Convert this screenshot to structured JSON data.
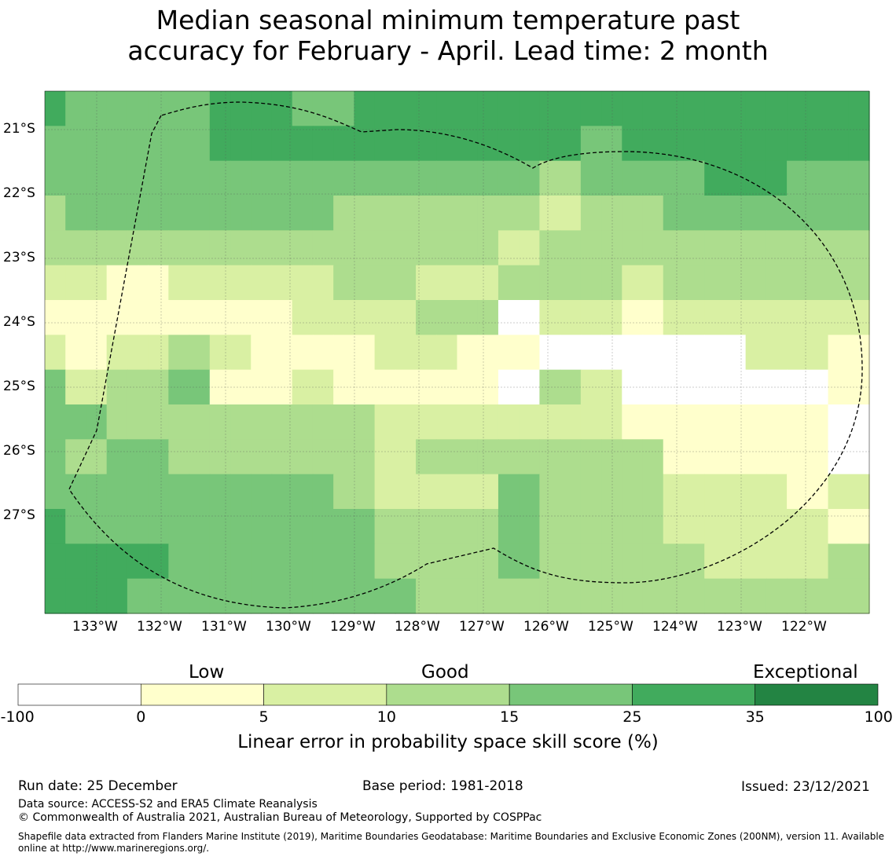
{
  "title": {
    "line1": "Median seasonal minimum temperature past",
    "line2": "accuracy for February - April. Lead time: 2 month"
  },
  "map": {
    "lat_labels": [
      "21°S",
      "22°S",
      "23°S",
      "24°S",
      "25°S",
      "26°S",
      "27°S"
    ],
    "lon_labels": [
      "133°W",
      "132°W",
      "131°W",
      "130°W",
      "129°W",
      "128°W",
      "127°W",
      "126°W",
      "125°W",
      "124°W",
      "123°W",
      "122°W"
    ],
    "grid_rows_lat_ranges": "20.5S to 28.5S",
    "class_colors": [
      "#ffffff",
      "#ffffcc",
      "#d9f0a3",
      "#addd8e",
      "#78c679",
      "#41ab5d",
      "#238443"
    ],
    "cells": [
      [
        5,
        4,
        4,
        4,
        4,
        4,
        4,
        4,
        5,
        5,
        5,
        5,
        4,
        4,
        4,
        5,
        5,
        5,
        5,
        5,
        5,
        5,
        5,
        5,
        5,
        5,
        5,
        5,
        5,
        5,
        5,
        5,
        5,
        5,
        5,
        5,
        5,
        5,
        5,
        5
      ],
      [
        4,
        4,
        4,
        4,
        4,
        4,
        4,
        4,
        5,
        5,
        5,
        5,
        5,
        5,
        5,
        5,
        5,
        5,
        5,
        5,
        5,
        5,
        5,
        5,
        5,
        5,
        4,
        4,
        5,
        5,
        5,
        5,
        5,
        5,
        5,
        5,
        5,
        5,
        5,
        5
      ],
      [
        4,
        4,
        4,
        4,
        4,
        4,
        4,
        4,
        4,
        4,
        4,
        4,
        4,
        4,
        4,
        4,
        4,
        4,
        4,
        4,
        4,
        4,
        4,
        4,
        3,
        3,
        4,
        4,
        4,
        4,
        4,
        4,
        5,
        5,
        5,
        5,
        4,
        4,
        4,
        4
      ],
      [
        3,
        4,
        4,
        4,
        4,
        4,
        4,
        4,
        4,
        4,
        4,
        4,
        4,
        4,
        3,
        3,
        3,
        3,
        3,
        3,
        3,
        3,
        3,
        3,
        2,
        2,
        3,
        3,
        3,
        3,
        4,
        4,
        4,
        4,
        4,
        4,
        4,
        4,
        4,
        4
      ],
      [
        3,
        3,
        3,
        3,
        3,
        3,
        3,
        3,
        3,
        3,
        3,
        3,
        3,
        3,
        3,
        3,
        3,
        3,
        3,
        3,
        3,
        3,
        2,
        2,
        3,
        3,
        3,
        3,
        3,
        3,
        3,
        3,
        3,
        3,
        3,
        3,
        3,
        3,
        3,
        3
      ],
      [
        2,
        2,
        2,
        1,
        1,
        1,
        2,
        2,
        2,
        2,
        2,
        2,
        2,
        2,
        3,
        3,
        3,
        3,
        2,
        2,
        2,
        2,
        3,
        3,
        3,
        3,
        3,
        3,
        2,
        2,
        3,
        3,
        3,
        3,
        3,
        3,
        3,
        3,
        3,
        3
      ],
      [
        1,
        1,
        1,
        1,
        1,
        1,
        1,
        1,
        1,
        1,
        1,
        1,
        2,
        2,
        2,
        2,
        2,
        2,
        3,
        3,
        3,
        3,
        0,
        0,
        2,
        2,
        2,
        2,
        1,
        1,
        2,
        2,
        2,
        2,
        2,
        2,
        2,
        2,
        2,
        2
      ],
      [
        2,
        1,
        1,
        2,
        2,
        2,
        3,
        3,
        2,
        2,
        1,
        1,
        1,
        1,
        1,
        1,
        2,
        2,
        2,
        2,
        1,
        1,
        1,
        1,
        0,
        0,
        0,
        0,
        0,
        0,
        0,
        0,
        0,
        0,
        2,
        2,
        2,
        2,
        1,
        1
      ],
      [
        4,
        2,
        2,
        3,
        3,
        3,
        4,
        4,
        1,
        1,
        1,
        1,
        2,
        2,
        1,
        1,
        1,
        1,
        1,
        1,
        1,
        1,
        0,
        0,
        3,
        3,
        2,
        2,
        0,
        0,
        0,
        0,
        0,
        0,
        0,
        0,
        0,
        0,
        1,
        1
      ],
      [
        4,
        4,
        4,
        3,
        3,
        3,
        3,
        3,
        3,
        3,
        3,
        3,
        3,
        3,
        3,
        3,
        2,
        2,
        2,
        2,
        2,
        2,
        2,
        2,
        2,
        2,
        2,
        2,
        1,
        1,
        1,
        1,
        1,
        1,
        1,
        1,
        1,
        1,
        0,
        0
      ],
      [
        4,
        3,
        3,
        4,
        4,
        4,
        3,
        3,
        3,
        3,
        3,
        3,
        3,
        3,
        3,
        3,
        2,
        2,
        3,
        3,
        3,
        3,
        3,
        3,
        3,
        3,
        3,
        3,
        3,
        3,
        1,
        1,
        1,
        1,
        1,
        1,
        1,
        1,
        0,
        0
      ],
      [
        4,
        4,
        4,
        4,
        4,
        4,
        4,
        4,
        4,
        4,
        4,
        4,
        4,
        4,
        3,
        3,
        2,
        2,
        2,
        2,
        2,
        2,
        4,
        4,
        3,
        3,
        3,
        3,
        3,
        3,
        2,
        2,
        2,
        2,
        2,
        2,
        1,
        1,
        2,
        2
      ],
      [
        5,
        4,
        4,
        4,
        4,
        4,
        4,
        4,
        4,
        4,
        4,
        4,
        4,
        4,
        4,
        4,
        3,
        3,
        3,
        3,
        3,
        3,
        4,
        4,
        3,
        3,
        3,
        3,
        3,
        3,
        2,
        2,
        2,
        2,
        2,
        2,
        2,
        2,
        1,
        1
      ],
      [
        5,
        5,
        5,
        5,
        5,
        5,
        4,
        4,
        4,
        4,
        4,
        4,
        4,
        4,
        4,
        4,
        3,
        3,
        3,
        3,
        3,
        3,
        4,
        4,
        3,
        3,
        3,
        3,
        3,
        3,
        3,
        3,
        2,
        2,
        2,
        2,
        2,
        2,
        3,
        3
      ],
      [
        5,
        5,
        5,
        5,
        4,
        4,
        4,
        4,
        4,
        4,
        4,
        4,
        4,
        4,
        4,
        4,
        4,
        4,
        3,
        3,
        3,
        3,
        3,
        3,
        3,
        3,
        3,
        3,
        3,
        3,
        3,
        3,
        3,
        3,
        3,
        3,
        3,
        3,
        3,
        3
      ]
    ]
  },
  "colorbar": {
    "categories": [
      "Low",
      "Good",
      "Exceptional"
    ],
    "ticks": [
      "-100",
      "0",
      "5",
      "10",
      "15",
      "25",
      "35",
      "100"
    ],
    "colors": [
      "#ffffff",
      "#ffffcc",
      "#d9f0a3",
      "#addd8e",
      "#78c679",
      "#41ab5d",
      "#238443"
    ],
    "title": "Linear error in probability space skill score (%)"
  },
  "footer": {
    "run_date": "Run date: 25 December",
    "base_period": "Base period: 1981-2018",
    "issued": "Issued: 23/12/2021",
    "data_source": "Data source: ACCESS-S2 and ERA5 Climate Reanalysis",
    "copyright": "© Commonwealth of Australia 2021, Australian Bureau of Meteorology, Supported by COSPPac",
    "shapefile": "Shapefile data extracted from Flanders Marine Institute (2019), Maritime Boundaries Geodatabase: Maritime Boundaries and Exclusive Economic Zones (200NM), version 11. Available online at http://www.marineregions.org/."
  }
}
